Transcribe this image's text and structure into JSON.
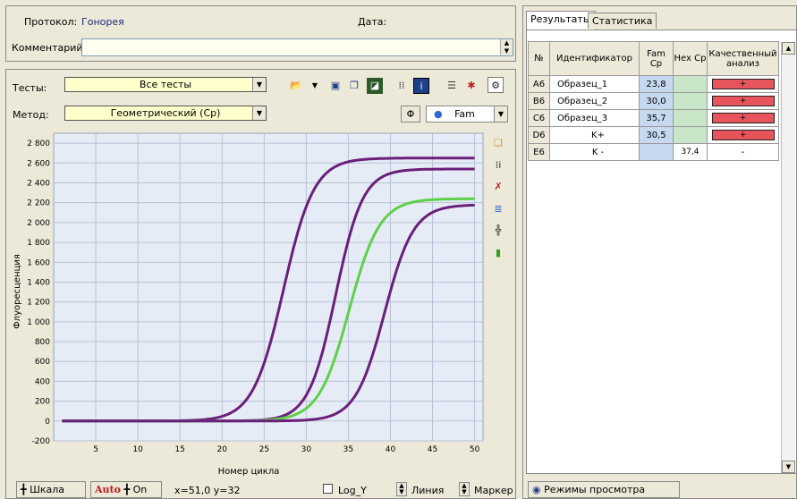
{
  "header": {
    "protocol_label": "Протокол:",
    "protocol_value": "Гонорея",
    "date_label": "Дата:",
    "comment_label": "Комментарий:",
    "comment_value": ""
  },
  "controls": {
    "tests_label": "Тесты:",
    "tests_value": "Все тесты",
    "method_label": "Метод:",
    "method_value": "Геометрический (Cp)",
    "channel_value": "Fam",
    "phi_symbol": "Φ"
  },
  "chart_data": {
    "type": "line",
    "xlabel": "Номер цикла",
    "ylabel": "Флуоресценция",
    "xlim": [
      0,
      51
    ],
    "ylim": [
      -200,
      2900
    ],
    "x_ticks": [
      5,
      10,
      15,
      20,
      25,
      30,
      35,
      40,
      45,
      50
    ],
    "y_ticks": [
      -200,
      0,
      200,
      400,
      600,
      800,
      1000,
      1200,
      1400,
      1600,
      1800,
      2000,
      2200,
      2400,
      2600,
      2800
    ],
    "grid": true,
    "series": [
      {
        "color": "#6a1f7a",
        "plateau": 2650,
        "midpoint": 27.3,
        "steepness": 0.55
      },
      {
        "color": "#6a1f7a",
        "plateau": 2540,
        "midpoint": 33.5,
        "steepness": 0.62
      },
      {
        "color": "#5fd04a",
        "plateau": 2240,
        "midpoint": 35.1,
        "steepness": 0.55
      },
      {
        "color": "#6a1f7a",
        "plateau": 2180,
        "midpoint": 39.3,
        "steepness": 0.58
      }
    ]
  },
  "results": {
    "tabs": [
      "Результаты",
      "Статистика"
    ],
    "columns": [
      "№",
      "Идентификатор",
      "Fam Cp",
      "Hex Cp",
      "Качественный анализ"
    ],
    "rows": [
      {
        "well": "A6",
        "id": "Образец_1",
        "fam": "23,8",
        "hex": "",
        "qual": "+"
      },
      {
        "well": "B6",
        "id": "Образец_2",
        "fam": "30,0",
        "hex": "",
        "qual": "+"
      },
      {
        "well": "C6",
        "id": "Образец_3",
        "fam": "35,7",
        "hex": "",
        "qual": "+"
      },
      {
        "well": "D6",
        "id": "K+",
        "fam": "30,5",
        "hex": "",
        "qual": "+"
      },
      {
        "well": "E6",
        "id": "K -",
        "fam": "",
        "hex": "37,4",
        "qual": "-"
      }
    ]
  },
  "footer": {
    "scale_label": "Шкала",
    "auto_label": "Auto",
    "on_label": "On",
    "coords": "x=51,0 y=32",
    "logy_label": "Log_Y",
    "line_label": "Линия",
    "marker_label": "Маркер",
    "view_modes_label": "Режимы просмотра данных"
  },
  "colors": {
    "positive": "#e8545c",
    "fam_cell": "#c6d9f1",
    "hex_cell": "#c9e6c9",
    "purple_curve": "#6a1f7a",
    "green_curve": "#5fd04a"
  }
}
